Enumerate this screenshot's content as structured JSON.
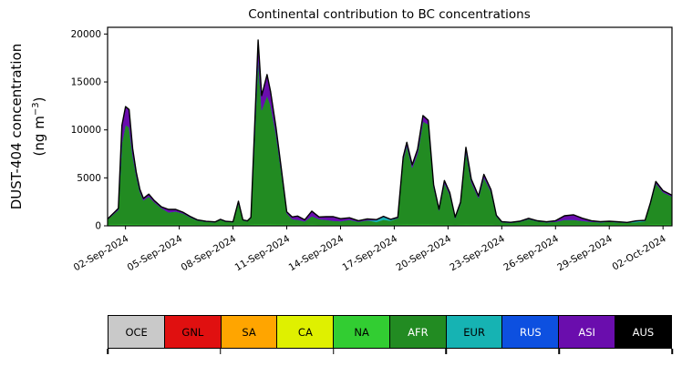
{
  "chart": {
    "title": "Continental contribution to BC concentrations",
    "ylabel_line1": "DUST-404 concentration",
    "unit_prefix": "(ng m",
    "unit_sup": "−3",
    "unit_suffix": ")",
    "yticks": [
      0,
      5000,
      10000,
      15000,
      20000
    ],
    "ytick_labels": [
      "0",
      "5000",
      "10000",
      "15000",
      "20000"
    ],
    "xticks": [
      0,
      3,
      6,
      9,
      12,
      15,
      18,
      21,
      24,
      27,
      30
    ],
    "xtick_labels": [
      "02-Sep-2024",
      "05-Sep-2024",
      "08-Sep-2024",
      "11-Sep-2024",
      "14-Sep-2024",
      "17-Sep-2024",
      "20-Sep-2024",
      "23-Sep-2024",
      "26-Sep-2024",
      "29-Sep-2024",
      "02-Oct-2024"
    ]
  },
  "chart_data": {
    "type": "area",
    "stacked": true,
    "title": "Continental contribution to BC concentrations",
    "xlabel": "",
    "ylabel": "DUST-404 concentration (ng m⁻³)",
    "ylim": [
      0,
      20000
    ],
    "x_unit": "days since 02-Sep-2024, axis range approx -1 to 30.5",
    "xtick_labels": [
      "02-Sep-2024",
      "05-Sep-2024",
      "08-Sep-2024",
      "11-Sep-2024",
      "14-Sep-2024",
      "17-Sep-2024",
      "20-Sep-2024",
      "23-Sep-2024",
      "26-Sep-2024",
      "29-Sep-2024",
      "02-Oct-2024"
    ],
    "legend_position": "bottom-strip",
    "grid": false,
    "series_order": [
      "OCE",
      "GNL",
      "SA",
      "CA",
      "NA",
      "AFR",
      "EUR",
      "RUS",
      "ASI",
      "AUS"
    ],
    "columns": [
      "x",
      "OCE",
      "GNL",
      "SA",
      "CA",
      "NA",
      "AFR",
      "EUR",
      "RUS",
      "ASI",
      "AUS"
    ],
    "rows": [
      [
        -1.0,
        25,
        0,
        0,
        0,
        130,
        500,
        0,
        0,
        60,
        0
      ],
      [
        -0.4,
        25,
        0,
        0,
        0,
        140,
        1500,
        0,
        0,
        150,
        0
      ],
      [
        -0.2,
        25,
        0,
        0,
        0,
        150,
        8500,
        0,
        0,
        1800,
        0
      ],
      [
        0.0,
        25,
        0,
        0,
        0,
        150,
        10350,
        0,
        0,
        1900,
        0
      ],
      [
        0.2,
        25,
        0,
        0,
        0,
        150,
        10100,
        0,
        0,
        1850,
        0
      ],
      [
        0.4,
        25,
        0,
        0,
        0,
        140,
        7200,
        0,
        0,
        700,
        0
      ],
      [
        0.6,
        25,
        0,
        0,
        0,
        140,
        5100,
        0,
        0,
        350,
        0
      ],
      [
        0.8,
        25,
        0,
        0,
        0,
        130,
        3400,
        0,
        0,
        250,
        0
      ],
      [
        1.0,
        25,
        0,
        0,
        0,
        130,
        2500,
        0,
        0,
        200,
        0
      ],
      [
        1.3,
        25,
        0,
        0,
        0,
        130,
        2900,
        0,
        0,
        250,
        0
      ],
      [
        1.6,
        25,
        0,
        0,
        0,
        130,
        2300,
        0,
        0,
        180,
        0
      ],
      [
        2.0,
        25,
        0,
        0,
        0,
        130,
        1700,
        0,
        0,
        120,
        0
      ],
      [
        2.4,
        25,
        0,
        0,
        0,
        130,
        1250,
        0,
        0,
        300,
        0
      ],
      [
        2.8,
        25,
        0,
        0,
        0,
        130,
        1350,
        0,
        0,
        200,
        0
      ],
      [
        3.2,
        25,
        0,
        0,
        0,
        130,
        1150,
        0,
        0,
        120,
        0
      ],
      [
        3.6,
        25,
        0,
        0,
        0,
        130,
        750,
        0,
        0,
        80,
        0
      ],
      [
        4.0,
        25,
        0,
        0,
        0,
        120,
        420,
        0,
        0,
        60,
        0
      ],
      [
        4.5,
        25,
        0,
        0,
        0,
        120,
        280,
        0,
        0,
        40,
        0
      ],
      [
        5.0,
        25,
        0,
        0,
        0,
        120,
        230,
        0,
        0,
        30,
        0
      ],
      [
        5.3,
        25,
        0,
        0,
        0,
        120,
        480,
        0,
        0,
        50,
        0
      ],
      [
        5.6,
        25,
        0,
        0,
        0,
        120,
        280,
        0,
        0,
        40,
        0
      ],
      [
        6.0,
        25,
        0,
        0,
        0,
        120,
        240,
        0,
        0,
        30,
        0
      ],
      [
        6.3,
        25,
        0,
        0,
        0,
        130,
        2250,
        0,
        0,
        160,
        0
      ],
      [
        6.55,
        25,
        0,
        0,
        0,
        120,
        420,
        0,
        0,
        50,
        0
      ],
      [
        6.8,
        25,
        0,
        0,
        0,
        120,
        330,
        0,
        0,
        40,
        0
      ],
      [
        7.0,
        25,
        0,
        0,
        0,
        130,
        650,
        0,
        0,
        80,
        0
      ],
      [
        7.2,
        25,
        0,
        0,
        0,
        150,
        8800,
        0,
        0,
        900,
        0
      ],
      [
        7.4,
        25,
        0,
        0,
        0,
        150,
        17400,
        0,
        0,
        1800,
        0
      ],
      [
        7.6,
        25,
        0,
        0,
        0,
        150,
        11900,
        0,
        0,
        1500,
        0
      ],
      [
        7.9,
        25,
        0,
        0,
        0,
        150,
        13400,
        0,
        0,
        2200,
        0
      ],
      [
        8.1,
        25,
        0,
        0,
        0,
        150,
        12400,
        0,
        0,
        1400,
        0
      ],
      [
        8.4,
        25,
        0,
        0,
        0,
        140,
        9400,
        0,
        0,
        700,
        0
      ],
      [
        8.7,
        25,
        0,
        0,
        0,
        140,
        5400,
        0,
        0,
        350,
        0
      ],
      [
        9.0,
        25,
        0,
        0,
        0,
        130,
        1150,
        0,
        0,
        160,
        0
      ],
      [
        9.3,
        25,
        0,
        0,
        0,
        130,
        550,
        0,
        0,
        220,
        0
      ],
      [
        9.6,
        25,
        0,
        0,
        0,
        130,
        480,
        0,
        0,
        380,
        0
      ],
      [
        10.0,
        25,
        0,
        0,
        0,
        120,
        320,
        0,
        0,
        160,
        0
      ],
      [
        10.4,
        25,
        0,
        0,
        0,
        130,
        850,
        0,
        0,
        520,
        0
      ],
      [
        10.8,
        25,
        0,
        0,
        0,
        120,
        560,
        0,
        0,
        220,
        0
      ],
      [
        11.2,
        25,
        0,
        0,
        0,
        120,
        480,
        0,
        0,
        320,
        0
      ],
      [
        11.6,
        25,
        0,
        0,
        0,
        120,
        380,
        0,
        0,
        420,
        0
      ],
      [
        12.0,
        25,
        0,
        0,
        0,
        120,
        340,
        0,
        0,
        260,
        0
      ],
      [
        12.5,
        25,
        0,
        0,
        0,
        120,
        480,
        0,
        0,
        210,
        0
      ],
      [
        13.0,
        25,
        0,
        0,
        0,
        120,
        280,
        0,
        0,
        110,
        0
      ],
      [
        13.5,
        25,
        0,
        0,
        0,
        120,
        430,
        0,
        0,
        150,
        0
      ],
      [
        14.0,
        25,
        0,
        0,
        0,
        120,
        240,
        200,
        0,
        60,
        0
      ],
      [
        14.4,
        25,
        0,
        0,
        0,
        120,
        480,
        310,
        0,
        50,
        0
      ],
      [
        14.8,
        25,
        0,
        0,
        0,
        120,
        380,
        110,
        0,
        40,
        0
      ],
      [
        15.2,
        25,
        0,
        0,
        0,
        130,
        650,
        0,
        0,
        90,
        0
      ],
      [
        15.5,
        25,
        0,
        0,
        0,
        140,
        6700,
        0,
        0,
        320,
        0
      ],
      [
        15.7,
        25,
        0,
        0,
        0,
        150,
        8200,
        0,
        0,
        330,
        0
      ],
      [
        16.0,
        25,
        0,
        0,
        0,
        140,
        5900,
        0,
        0,
        300,
        0
      ],
      [
        16.3,
        25,
        0,
        0,
        0,
        150,
        7400,
        0,
        0,
        420,
        0
      ],
      [
        16.6,
        25,
        0,
        0,
        0,
        150,
        10700,
        0,
        0,
        620,
        0
      ],
      [
        16.9,
        25,
        0,
        0,
        0,
        150,
        10400,
        0,
        0,
        420,
        0
      ],
      [
        17.2,
        25,
        0,
        0,
        0,
        130,
        3900,
        0,
        0,
        220,
        0
      ],
      [
        17.5,
        25,
        0,
        0,
        0,
        130,
        1450,
        0,
        0,
        120,
        0
      ],
      [
        17.8,
        25,
        0,
        0,
        0,
        130,
        4300,
        0,
        0,
        260,
        0
      ],
      [
        18.1,
        25,
        0,
        0,
        0,
        130,
        3100,
        0,
        0,
        210,
        0
      ],
      [
        18.4,
        25,
        0,
        0,
        0,
        120,
        650,
        0,
        0,
        110,
        0
      ],
      [
        18.7,
        25,
        0,
        0,
        0,
        130,
        2150,
        0,
        0,
        160,
        0
      ],
      [
        19.0,
        25,
        0,
        0,
        0,
        140,
        7600,
        0,
        0,
        420,
        0
      ],
      [
        19.3,
        25,
        0,
        0,
        0,
        130,
        4400,
        0,
        0,
        310,
        0
      ],
      [
        19.7,
        25,
        0,
        0,
        0,
        130,
        2750,
        0,
        0,
        210,
        0
      ],
      [
        20.0,
        25,
        0,
        0,
        0,
        130,
        4900,
        0,
        0,
        310,
        0
      ],
      [
        20.4,
        25,
        0,
        0,
        0,
        130,
        3400,
        0,
        0,
        210,
        0
      ],
      [
        20.7,
        25,
        0,
        0,
        0,
        120,
        850,
        0,
        0,
        110,
        0
      ],
      [
        21.0,
        25,
        0,
        0,
        0,
        120,
        230,
        0,
        0,
        60,
        0
      ],
      [
        21.5,
        25,
        0,
        0,
        0,
        120,
        180,
        0,
        0,
        40,
        0
      ],
      [
        22.0,
        25,
        0,
        0,
        0,
        120,
        280,
        0,
        0,
        50,
        0
      ],
      [
        22.5,
        25,
        0,
        0,
        0,
        120,
        560,
        0,
        0,
        70,
        0
      ],
      [
        23.0,
        25,
        0,
        0,
        0,
        120,
        330,
        0,
        0,
        50,
        0
      ],
      [
        23.5,
        25,
        0,
        0,
        0,
        120,
        230,
        0,
        0,
        40,
        0
      ],
      [
        24.0,
        25,
        0,
        0,
        0,
        120,
        280,
        0,
        0,
        110,
        0
      ],
      [
        24.5,
        25,
        0,
        0,
        0,
        120,
        480,
        0,
        0,
        420,
        0
      ],
      [
        25.0,
        25,
        0,
        0,
        0,
        120,
        480,
        0,
        0,
        520,
        0
      ],
      [
        25.5,
        25,
        0,
        0,
        0,
        120,
        380,
        0,
        0,
        260,
        0
      ],
      [
        26.0,
        25,
        0,
        0,
        0,
        120,
        280,
        0,
        0,
        110,
        0
      ],
      [
        26.5,
        25,
        0,
        0,
        0,
        120,
        230,
        0,
        0,
        60,
        0
      ],
      [
        27.0,
        25,
        0,
        0,
        0,
        120,
        280,
        0,
        0,
        50,
        0
      ],
      [
        27.5,
        25,
        0,
        0,
        0,
        120,
        230,
        0,
        0,
        40,
        0
      ],
      [
        28.0,
        25,
        0,
        0,
        0,
        120,
        180,
        0,
        0,
        30,
        0
      ],
      [
        28.5,
        25,
        0,
        0,
        0,
        120,
        230,
        110,
        0,
        30,
        0
      ],
      [
        29.0,
        25,
        0,
        0,
        0,
        120,
        330,
        60,
        0,
        40,
        0
      ],
      [
        29.3,
        25,
        0,
        0,
        0,
        130,
        2150,
        0,
        0,
        110,
        0
      ],
      [
        29.6,
        25,
        0,
        0,
        0,
        140,
        4250,
        0,
        0,
        210,
        0
      ],
      [
        30.0,
        25,
        0,
        0,
        0,
        130,
        3350,
        0,
        0,
        160,
        0
      ],
      [
        30.5,
        25,
        0,
        0,
        0,
        130,
        2900,
        0,
        0,
        140,
        0
      ]
    ]
  },
  "legend": {
    "items": [
      {
        "label": "OCE",
        "color": "#c9c9c9",
        "text_color": "#000000"
      },
      {
        "label": "GNL",
        "color": "#e01010",
        "text_color": "#000000"
      },
      {
        "label": "SA",
        "color": "#ffa500",
        "text_color": "#000000"
      },
      {
        "label": "CA",
        "color": "#dff000",
        "text_color": "#000000"
      },
      {
        "label": "NA",
        "color": "#32cd32",
        "text_color": "#000000"
      },
      {
        "label": "AFR",
        "color": "#228b22",
        "text_color": "#ffffff"
      },
      {
        "label": "EUR",
        "color": "#16b3b3",
        "text_color": "#000000"
      },
      {
        "label": "RUS",
        "color": "#0d50e0",
        "text_color": "#ffffff"
      },
      {
        "label": "ASI",
        "color": "#6a0dad",
        "text_color": "#ffffff"
      },
      {
        "label": "AUS",
        "color": "#000000",
        "text_color": "#ffffff"
      }
    ]
  }
}
